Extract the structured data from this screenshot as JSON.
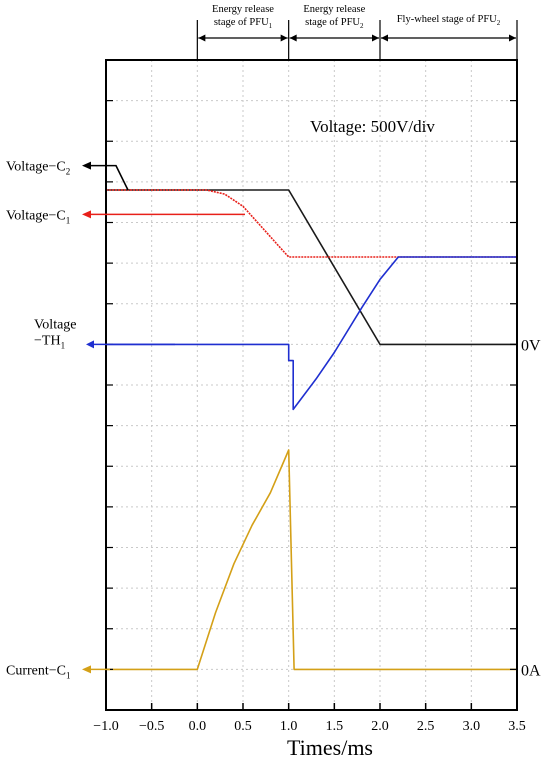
{
  "chart_data": {
    "type": "line",
    "xlabel": "Times/ms",
    "x_ticks": [
      -1.0,
      -0.5,
      0.0,
      0.5,
      1.0,
      1.5,
      2.0,
      2.5,
      3.0,
      3.5
    ],
    "x_tick_labels": [
      "−1.0",
      "−0.5",
      "0.0",
      "0.5",
      "1.0",
      "1.5",
      "2.0",
      "2.5",
      "3.0",
      "3.5"
    ],
    "xlim": [
      -1.0,
      3.5
    ],
    "ylim": [
      -4,
      12
    ],
    "y_unit_note": "Voltage: 500V/div",
    "grid": true,
    "stages": [
      {
        "label_line1": "Energy release",
        "label_line2": "stage of PFU",
        "sub": "1",
        "x_start": 0.0,
        "x_end": 1.0
      },
      {
        "label_line1": "Energy release",
        "label_line2": "stage of PFU",
        "sub": "2",
        "x_start": 1.0,
        "x_end": 2.0
      },
      {
        "label_line1": "Fly-wheel stage of PFU",
        "label_line2": "",
        "sub": "2",
        "x_start": 2.0,
        "x_end": 3.5
      }
    ],
    "reference_labels": [
      {
        "text": "0V",
        "y": 5.0
      },
      {
        "text": "0A",
        "y": -3.0
      }
    ],
    "series": [
      {
        "name": "Voltage−C",
        "sub": "2",
        "color": "#1a1a1a",
        "dash": "",
        "label_y": 9.4,
        "x": [
          -1.0,
          1.0,
          2.0,
          3.5
        ],
        "y": [
          8.8,
          8.8,
          5.0,
          5.0
        ]
      },
      {
        "name": "Voltage−C",
        "sub": "1",
        "color": "#e8201a",
        "dash": "2,1",
        "label_y": 8.2,
        "x": [
          -1.0,
          0.1,
          0.3,
          0.5,
          0.7,
          0.9,
          1.0,
          3.5
        ],
        "y": [
          8.8,
          8.8,
          8.7,
          8.4,
          7.9,
          7.4,
          7.15,
          7.15
        ]
      },
      {
        "name": "Voltage",
        "name_line2": "−TH",
        "sub": "1",
        "color": "#1f2fd0",
        "dash": "",
        "label_y": 5.0,
        "x": [
          -1.0,
          1.0,
          1.0,
          1.05,
          1.05,
          1.3,
          1.5,
          1.8,
          2.0,
          2.2,
          3.5
        ],
        "y": [
          5.0,
          5.0,
          4.6,
          4.6,
          3.4,
          4.15,
          4.8,
          5.9,
          6.6,
          7.15,
          7.15
        ]
      },
      {
        "name": "Current−C",
        "sub": "1",
        "color": "#d4a017",
        "dash": "",
        "label_y": -3.0,
        "x": [
          -1.0,
          0.0,
          0.2,
          0.4,
          0.6,
          0.8,
          1.0,
          1.06,
          1.06,
          3.5
        ],
        "y": [
          -3.0,
          -3.0,
          -1.6,
          -0.4,
          0.55,
          1.35,
          2.4,
          -3.0,
          -3.0,
          -3.0
        ]
      }
    ]
  }
}
